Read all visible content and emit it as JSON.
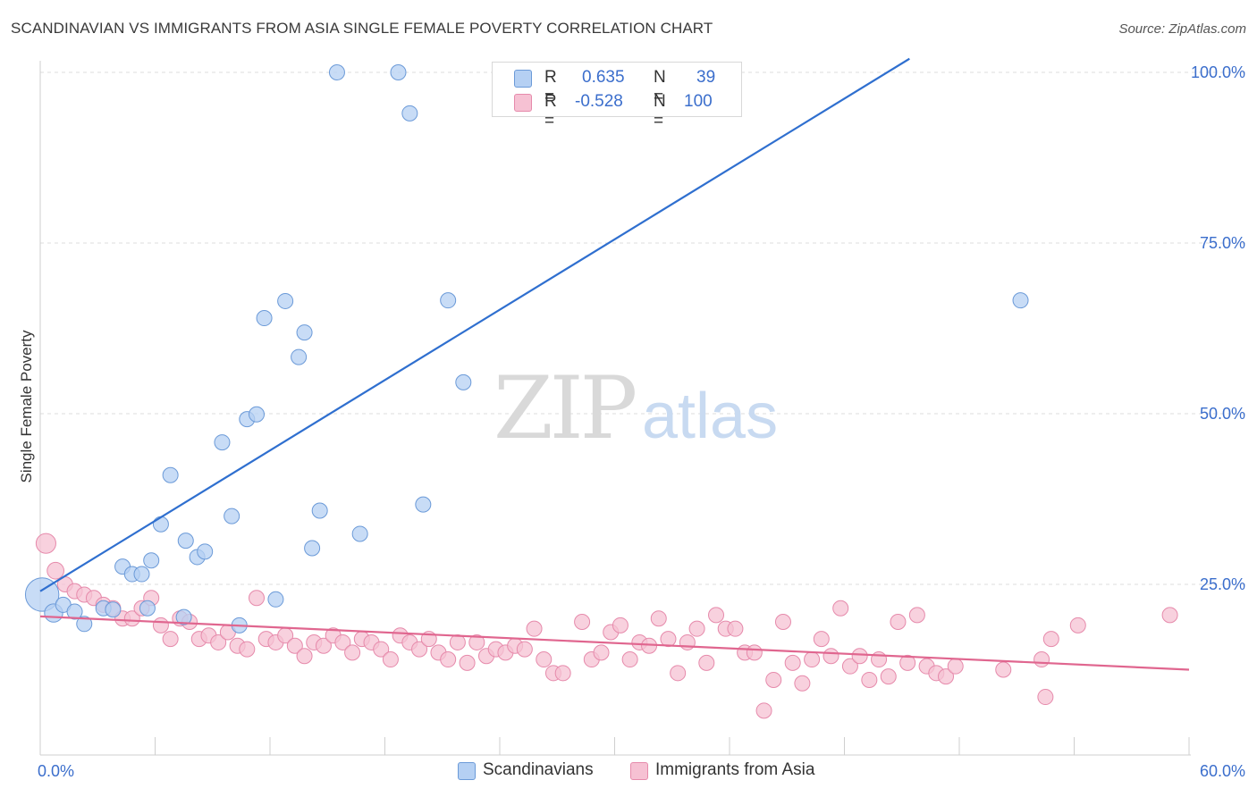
{
  "header": {
    "title": "SCANDINAVIAN VS IMMIGRANTS FROM ASIA SINGLE FEMALE POVERTY CORRELATION CHART",
    "source": "Source: ZipAtlas.com"
  },
  "legend_top": {
    "rows": [
      {
        "r_label": "R =",
        "r_value": "0.635",
        "n_label": "N =",
        "n_value": "39"
      },
      {
        "r_label": "R =",
        "r_value": "-0.528",
        "n_label": "N =",
        "n_value": "100"
      }
    ]
  },
  "legend_bottom": {
    "items": [
      {
        "label": "Scandinavians"
      },
      {
        "label": "Immigrants from Asia"
      }
    ]
  },
  "watermark": {
    "zip": "ZIP",
    "atlas": "atlas"
  },
  "colors": {
    "blue_fill": "#b5d0f3",
    "blue_stroke": "#6b9ad8",
    "blue_line": "#2f6fcf",
    "pink_fill": "#f6c1d3",
    "pink_stroke": "#e68aab",
    "pink_line": "#e0668f",
    "axis_text": "#3b6ecc",
    "grid": "#dcdcdc"
  },
  "chart_data": {
    "type": "scatter",
    "xlabel": "",
    "ylabel": "Single Female Poverty",
    "xlim": [
      0,
      60
    ],
    "ylim": [
      0,
      100
    ],
    "x_tick_labels": [
      "0.0%",
      "60.0%"
    ],
    "y_tick_labels": [
      "100.0%",
      "75.0%",
      "50.0%",
      "25.0%"
    ],
    "y_ticks": [
      100,
      75,
      50,
      25
    ],
    "grid": true,
    "series": [
      {
        "name": "Scandinavians",
        "r": 0.635,
        "n": 39,
        "trend": {
          "x": [
            0,
            45.4
          ],
          "y": [
            24.0,
            102.0
          ]
        },
        "points": [
          [
            0.1,
            23.5,
            2.2
          ],
          [
            0.7,
            20.8,
            1.2
          ],
          [
            1.2,
            22.0,
            1.0
          ],
          [
            1.8,
            21.0,
            1.0
          ],
          [
            2.3,
            19.2,
            1.0
          ],
          [
            3.3,
            21.5,
            1.0
          ],
          [
            3.8,
            21.3,
            1.0
          ],
          [
            4.3,
            27.6,
            1.0
          ],
          [
            4.8,
            26.5,
            1.0
          ],
          [
            5.3,
            26.5,
            1.0
          ],
          [
            5.8,
            28.5,
            1.0
          ],
          [
            6.3,
            33.8,
            1.0
          ],
          [
            6.8,
            41.0,
            1.0
          ],
          [
            7.5,
            20.2,
            1.0
          ],
          [
            7.6,
            31.4,
            1.0
          ],
          [
            8.2,
            29.0,
            1.0
          ],
          [
            8.6,
            29.8,
            1.0
          ],
          [
            9.5,
            45.8,
            1.0
          ],
          [
            10.0,
            35.0,
            1.0
          ],
          [
            10.4,
            19.0,
            1.0
          ],
          [
            10.8,
            49.2,
            1.0
          ],
          [
            11.3,
            49.9,
            1.0
          ],
          [
            11.7,
            64.0,
            1.0
          ],
          [
            12.3,
            22.8,
            1.0
          ],
          [
            12.8,
            66.5,
            1.0
          ],
          [
            13.5,
            58.3,
            1.0
          ],
          [
            13.8,
            61.9,
            1.0
          ],
          [
            14.2,
            30.3,
            1.0
          ],
          [
            14.6,
            35.8,
            1.0
          ],
          [
            15.5,
            100.0,
            1.0
          ],
          [
            16.7,
            32.4,
            1.0
          ],
          [
            18.7,
            100.0,
            1.0
          ],
          [
            19.3,
            94.0,
            1.0
          ],
          [
            20.0,
            36.7,
            1.0
          ],
          [
            21.3,
            66.6,
            1.0
          ],
          [
            22.1,
            54.6,
            1.0
          ],
          [
            25.8,
            100.0,
            1.0
          ],
          [
            51.2,
            66.6,
            1.0
          ],
          [
            5.6,
            21.5,
            1.0
          ]
        ]
      },
      {
        "name": "Immigrants from Asia",
        "r": -0.528,
        "n": 100,
        "trend": {
          "x": [
            0,
            60
          ],
          "y": [
            20.3,
            12.5
          ]
        },
        "points": [
          [
            0.3,
            31.0,
            1.3
          ],
          [
            0.8,
            27.0,
            1.1
          ],
          [
            1.3,
            25.0,
            1.0
          ],
          [
            1.8,
            24.0,
            1.0
          ],
          [
            2.3,
            23.5,
            1.0
          ],
          [
            2.8,
            23.0,
            1.0
          ],
          [
            3.3,
            22.0,
            1.0
          ],
          [
            3.8,
            21.5,
            1.0
          ],
          [
            4.3,
            20.0,
            1.0
          ],
          [
            4.8,
            20.0,
            1.0
          ],
          [
            5.3,
            21.5,
            1.0
          ],
          [
            5.8,
            23.0,
            1.0
          ],
          [
            6.3,
            19.0,
            1.0
          ],
          [
            6.8,
            17.0,
            1.0
          ],
          [
            7.3,
            20.0,
            1.0
          ],
          [
            7.8,
            19.5,
            1.0
          ],
          [
            8.3,
            17.0,
            1.0
          ],
          [
            8.8,
            17.5,
            1.0
          ],
          [
            9.3,
            16.5,
            1.0
          ],
          [
            9.8,
            18.0,
            1.0
          ],
          [
            10.3,
            16.0,
            1.0
          ],
          [
            10.8,
            15.5,
            1.0
          ],
          [
            11.3,
            23.0,
            1.0
          ],
          [
            11.8,
            17.0,
            1.0
          ],
          [
            12.3,
            16.5,
            1.0
          ],
          [
            12.8,
            17.5,
            1.0
          ],
          [
            13.3,
            16.0,
            1.0
          ],
          [
            13.8,
            14.5,
            1.0
          ],
          [
            14.3,
            16.5,
            1.0
          ],
          [
            14.8,
            16.0,
            1.0
          ],
          [
            15.3,
            17.5,
            1.0
          ],
          [
            15.8,
            16.5,
            1.0
          ],
          [
            16.3,
            15.0,
            1.0
          ],
          [
            16.8,
            17.0,
            1.0
          ],
          [
            17.3,
            16.5,
            1.0
          ],
          [
            17.8,
            15.5,
            1.0
          ],
          [
            18.3,
            14.0,
            1.0
          ],
          [
            18.8,
            17.5,
            1.0
          ],
          [
            19.3,
            16.5,
            1.0
          ],
          [
            19.8,
            15.5,
            1.0
          ],
          [
            20.3,
            17.0,
            1.0
          ],
          [
            20.8,
            15.0,
            1.0
          ],
          [
            21.3,
            14.0,
            1.0
          ],
          [
            21.8,
            16.5,
            1.0
          ],
          [
            22.3,
            13.5,
            1.0
          ],
          [
            22.8,
            16.5,
            1.0
          ],
          [
            23.3,
            14.5,
            1.0
          ],
          [
            23.8,
            15.5,
            1.0
          ],
          [
            24.3,
            15.0,
            1.0
          ],
          [
            24.8,
            16.0,
            1.0
          ],
          [
            25.3,
            15.5,
            1.0
          ],
          [
            25.8,
            18.5,
            1.0
          ],
          [
            26.3,
            14.0,
            1.0
          ],
          [
            26.8,
            12.0,
            1.0
          ],
          [
            27.3,
            12.0,
            1.0
          ],
          [
            28.3,
            19.5,
            1.0
          ],
          [
            28.8,
            14.0,
            1.0
          ],
          [
            29.3,
            15.0,
            1.0
          ],
          [
            29.8,
            18.0,
            1.0
          ],
          [
            30.3,
            19.0,
            1.0
          ],
          [
            30.8,
            14.0,
            1.0
          ],
          [
            31.3,
            16.5,
            1.0
          ],
          [
            31.8,
            16.0,
            1.0
          ],
          [
            32.3,
            20.0,
            1.0
          ],
          [
            32.8,
            17.0,
            1.0
          ],
          [
            33.3,
            12.0,
            1.0
          ],
          [
            33.8,
            16.5,
            1.0
          ],
          [
            34.3,
            18.5,
            1.0
          ],
          [
            34.8,
            13.5,
            1.0
          ],
          [
            35.3,
            20.5,
            1.0
          ],
          [
            35.8,
            18.5,
            1.0
          ],
          [
            36.3,
            18.5,
            1.0
          ],
          [
            36.8,
            15.0,
            1.0
          ],
          [
            37.3,
            15.0,
            1.0
          ],
          [
            37.8,
            6.5,
            1.0
          ],
          [
            38.3,
            11.0,
            1.0
          ],
          [
            38.8,
            19.5,
            1.0
          ],
          [
            39.3,
            13.5,
            1.0
          ],
          [
            39.8,
            10.5,
            1.0
          ],
          [
            40.3,
            14.0,
            1.0
          ],
          [
            40.8,
            17.0,
            1.0
          ],
          [
            41.3,
            14.5,
            1.0
          ],
          [
            41.8,
            21.5,
            1.0
          ],
          [
            42.3,
            13.0,
            1.0
          ],
          [
            42.8,
            14.5,
            1.0
          ],
          [
            43.3,
            11.0,
            1.0
          ],
          [
            43.8,
            14.0,
            1.0
          ],
          [
            44.3,
            11.5,
            1.0
          ],
          [
            44.8,
            19.5,
            1.0
          ],
          [
            45.3,
            13.5,
            1.0
          ],
          [
            45.8,
            20.5,
            1.0
          ],
          [
            46.3,
            13.0,
            1.0
          ],
          [
            46.8,
            12.0,
            1.0
          ],
          [
            47.3,
            11.5,
            1.0
          ],
          [
            47.8,
            13.0,
            1.0
          ],
          [
            50.3,
            12.5,
            1.0
          ],
          [
            52.3,
            14.0,
            1.0
          ],
          [
            52.8,
            17.0,
            1.0
          ],
          [
            52.5,
            8.5,
            1.0
          ],
          [
            54.2,
            19.0,
            1.0
          ],
          [
            59.0,
            20.5,
            1.0
          ]
        ]
      }
    ]
  }
}
